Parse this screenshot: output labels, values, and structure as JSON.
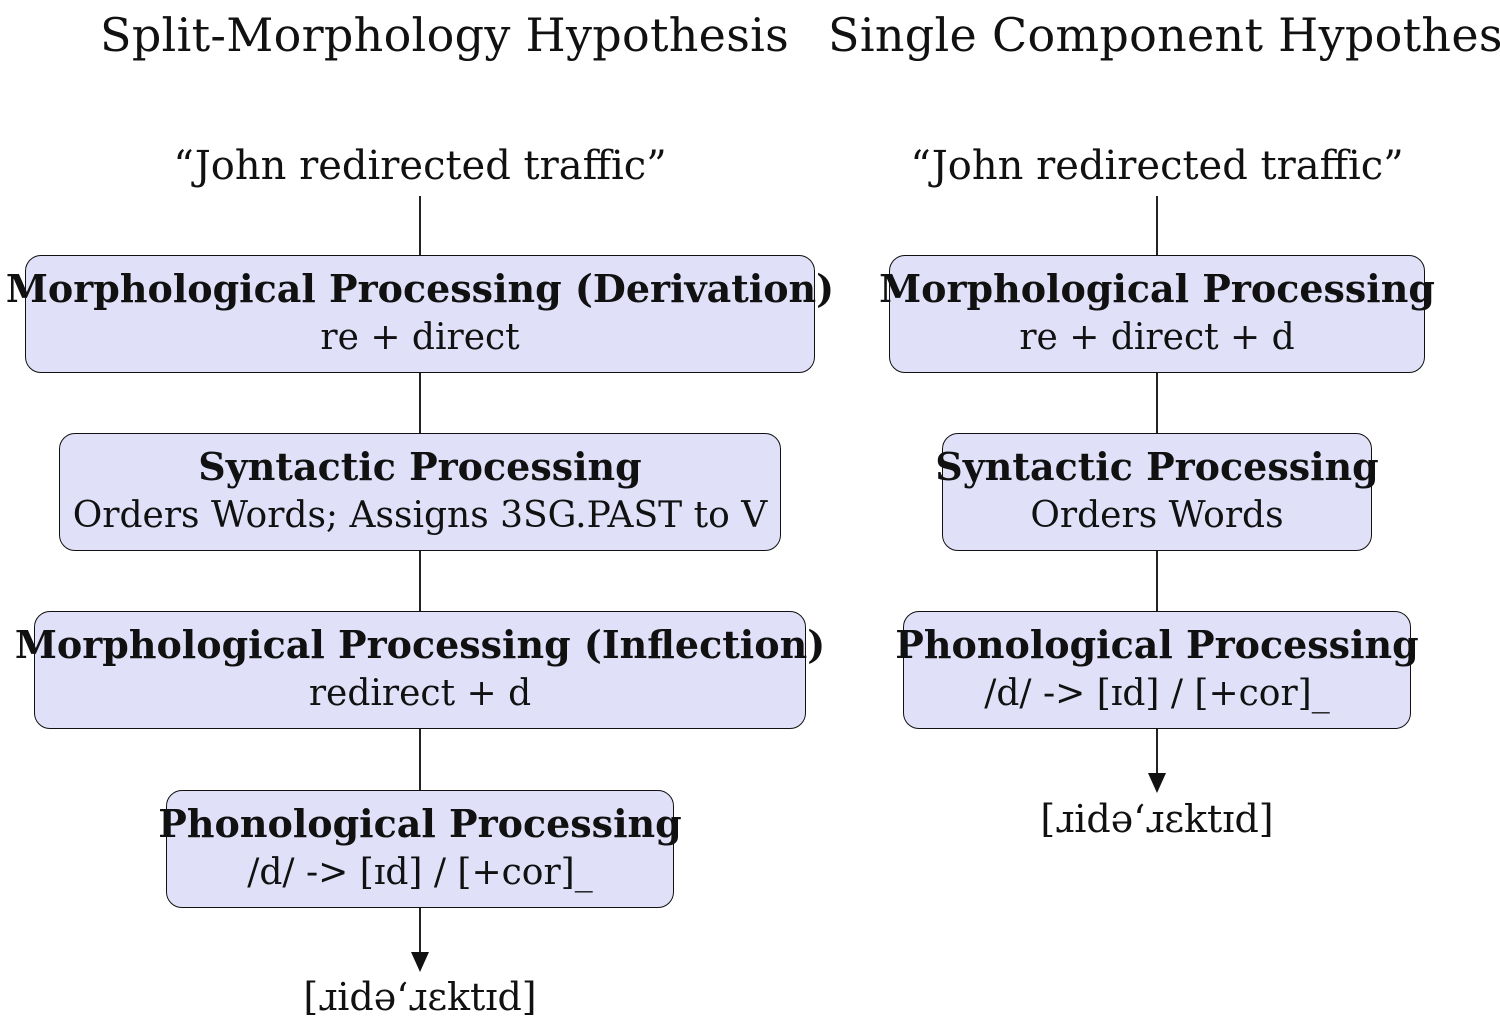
{
  "left": {
    "title": "Split-Morphology Hypothesis",
    "input": "“John redirected traffic”",
    "boxes": [
      {
        "heading": "Morphological Processing (Derivation)",
        "detail": "re + direct"
      },
      {
        "heading": "Syntactic Processing",
        "detail": "Orders Words; Assigns 3SG.PAST to V"
      },
      {
        "heading": "Morphological Processing (Inflection)",
        "detail": "redirect + d"
      },
      {
        "heading": "Phonological Processing",
        "detail": "/d/ -> [ɪd] / [+cor]_"
      }
    ],
    "output": "[ɹidə‘ɹɛktɪd]"
  },
  "right": {
    "title": "Single Component Hypothesis",
    "input": "“John redirected traffic”",
    "boxes": [
      {
        "heading": "Morphological Processing",
        "detail": "re + direct + d"
      },
      {
        "heading": "Syntactic Processing",
        "detail": "Orders Words"
      },
      {
        "heading": "Phonological Processing",
        "detail": "/d/ -> [ɪd] / [+cor]_"
      }
    ],
    "output": "[ɹidə‘ɹɛktɪd]"
  }
}
